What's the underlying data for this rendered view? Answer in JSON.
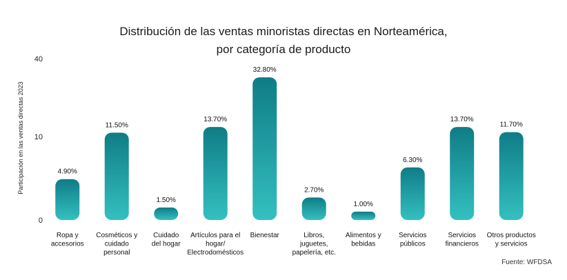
{
  "chart_data": {
    "type": "bar",
    "title_line1": "Distribución de las ventas minoristas directas en Norteamérica,",
    "title_line2": "por categoría de producto",
    "ylabel": "Participación en las ventas directas 2023",
    "xlabel": "",
    "y_ticks": [
      "40",
      "10",
      "0"
    ],
    "categories": [
      [
        "Ropa y",
        "accesorios"
      ],
      [
        "Cosméticos y",
        "cuidado",
        "personal"
      ],
      [
        "Cuidado",
        "del hogar"
      ],
      [
        "Artículos para el",
        "hogar/",
        "Electrodomésticos"
      ],
      [
        "Bienestar"
      ],
      [
        "Libros,",
        "juguetes,",
        "papelería, etc."
      ],
      [
        "Alimentos y",
        "bebidas"
      ],
      [
        "Servicios",
        "públicos"
      ],
      [
        "Servicios",
        "financieros"
      ],
      [
        "Otros productos",
        "y servicios"
      ]
    ],
    "values": [
      4.9,
      11.5,
      1.5,
      13.7,
      32.8,
      2.7,
      1.0,
      6.3,
      13.7,
      11.7
    ],
    "value_labels": [
      "4.90%",
      "11.50%",
      "1.50%",
      "13.70%",
      "32.80%",
      "2.70%",
      "1.00%",
      "6.30%",
      "13.70%",
      "11.70%"
    ],
    "gradient_colors": [
      "#0f7c86",
      "#34c0c0"
    ],
    "grid": false,
    "legend": "none"
  },
  "source": "Fuente: WFDSA"
}
